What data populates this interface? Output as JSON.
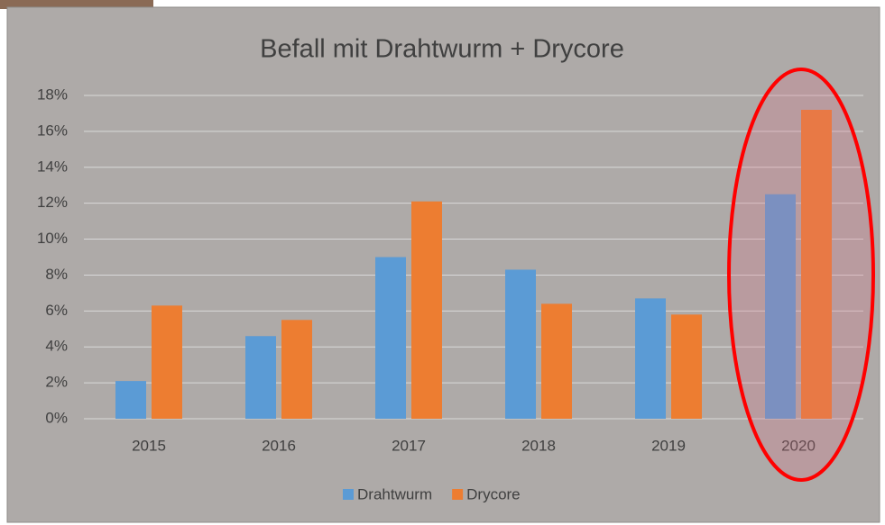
{
  "chart_data": {
    "type": "bar",
    "title": "Befall mit Drahtwurm + Drycore",
    "categories": [
      "2015",
      "2016",
      "2017",
      "2018",
      "2019",
      "2020"
    ],
    "series": [
      {
        "name": "Drahtwurm",
        "color": "#5b9bd5",
        "values": [
          2.1,
          4.6,
          9.0,
          8.3,
          6.7,
          12.5
        ]
      },
      {
        "name": "Drycore",
        "color": "#ed7d31",
        "values": [
          6.3,
          5.5,
          12.1,
          6.4,
          5.8,
          17.2
        ]
      }
    ],
    "ylim": [
      0,
      18
    ],
    "yticks": [
      {
        "value": 0,
        "label": "0%"
      },
      {
        "value": 2,
        "label": "2%"
      },
      {
        "value": 4,
        "label": "4%"
      },
      {
        "value": 6,
        "label": "6%"
      },
      {
        "value": 8,
        "label": "8%"
      },
      {
        "value": 10,
        "label": "10%"
      },
      {
        "value": 12,
        "label": "12%"
      },
      {
        "value": 14,
        "label": "14%"
      },
      {
        "value": 16,
        "label": "16%"
      },
      {
        "value": 18,
        "label": "18%"
      }
    ],
    "grid": true,
    "legend": "bottom"
  }
}
